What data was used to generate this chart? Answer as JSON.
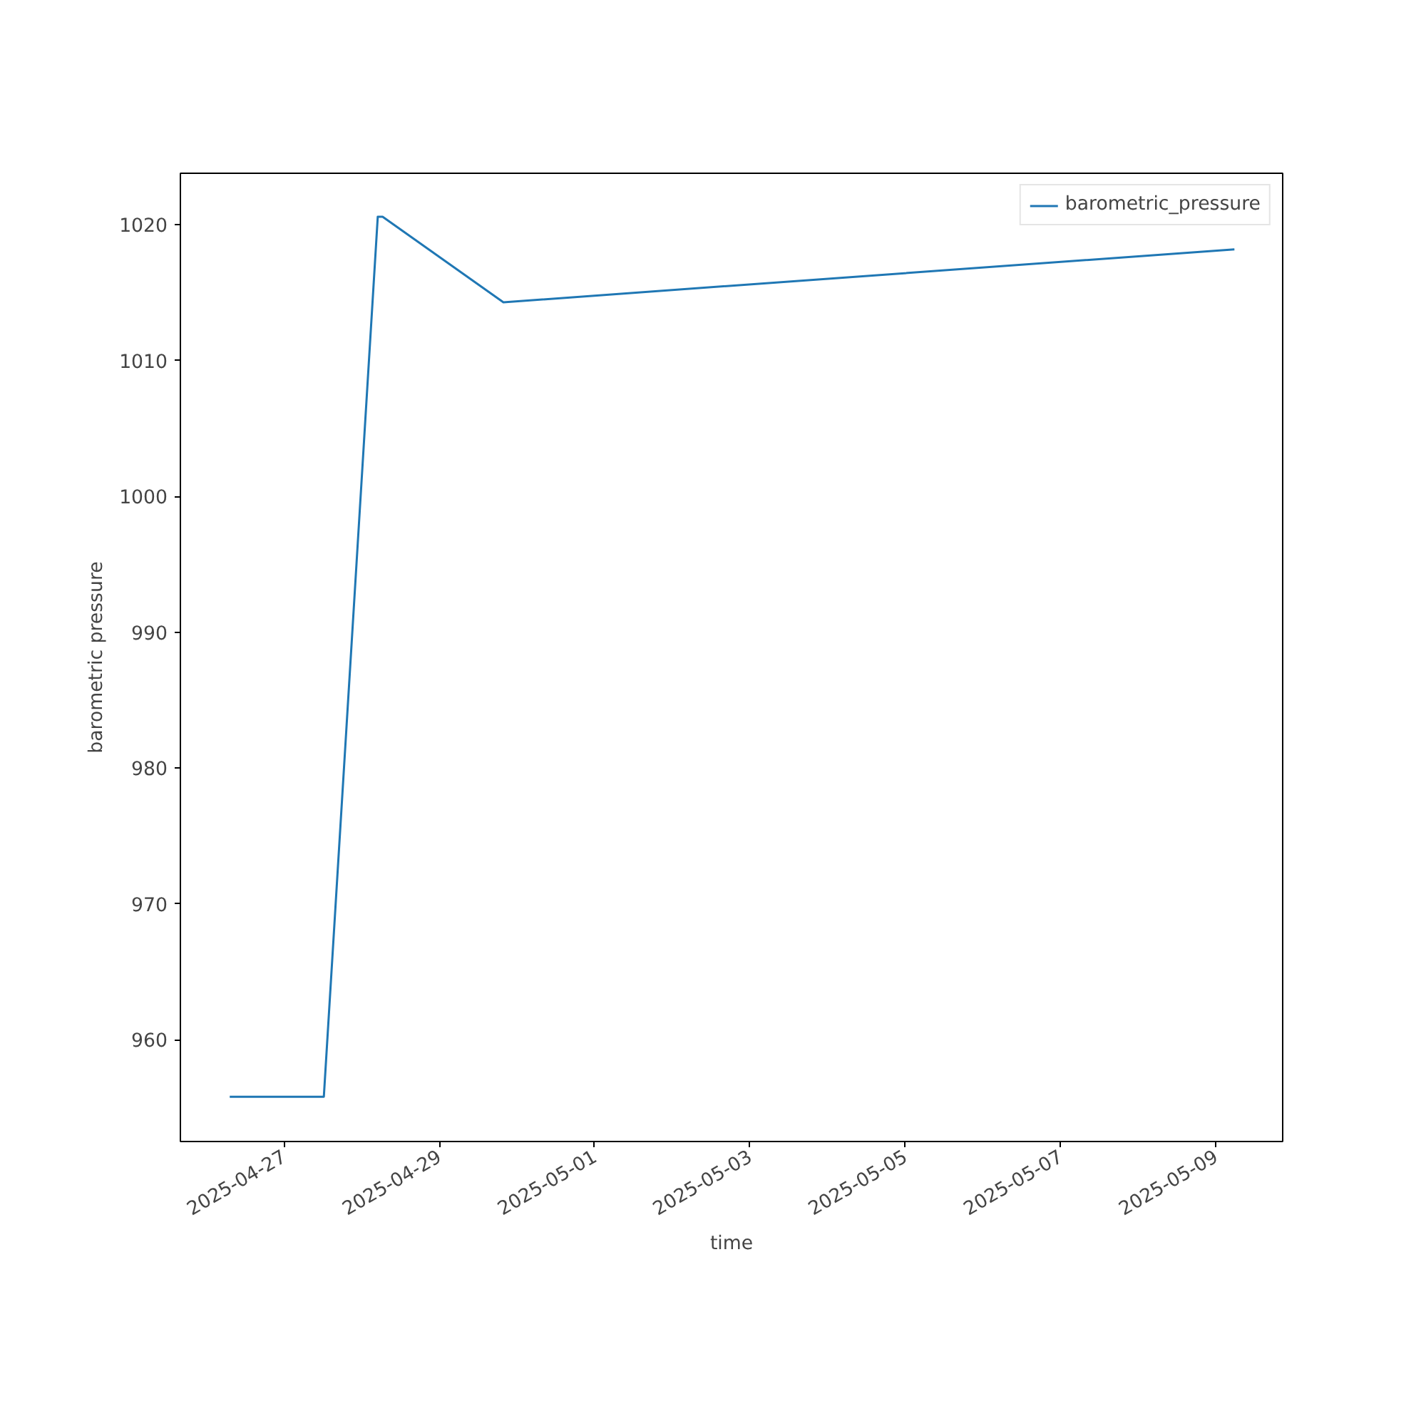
{
  "chart_data": {
    "type": "line",
    "xlabel": "time",
    "ylabel": "barometric pressure",
    "x": [
      "2025-04-26T07:15",
      "2025-04-27T12:20",
      "2025-04-28T05:00",
      "2025-04-28T06:30",
      "2025-04-29T19:50",
      "2025-05-09T05:45"
    ],
    "series": [
      {
        "name": "barometric_pressure",
        "color": "#1f77b4",
        "values": [
          955.8,
          955.8,
          1020.6,
          1020.6,
          1014.3,
          1018.2
        ]
      }
    ],
    "xlim": [
      "2025-04-25T16:00",
      "2025-05-09T20:40"
    ],
    "xticks": [
      "2025-04-27",
      "2025-04-29",
      "2025-05-01",
      "2025-05-03",
      "2025-05-05",
      "2025-05-07",
      "2025-05-09"
    ],
    "ylim": [
      952.5,
      1023.8
    ],
    "yticks": [
      960,
      970,
      980,
      990,
      1000,
      1010,
      1020
    ],
    "grid": false,
    "legend": "top right",
    "marker": "none",
    "line_style": "solid"
  }
}
